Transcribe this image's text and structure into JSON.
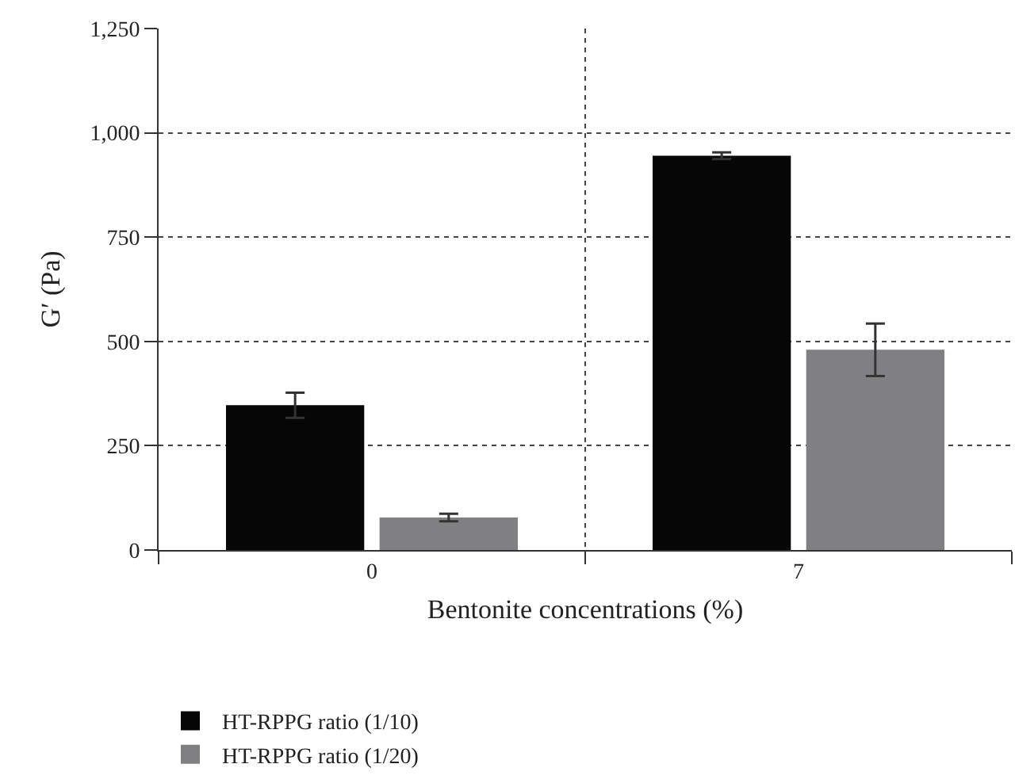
{
  "chart_data": {
    "type": "bar",
    "xlabel": "Bentonite concentrations (%)",
    "ylabel": "G′ (Pa)",
    "categories": [
      "0",
      "7"
    ],
    "series": [
      {
        "name": "HT-RPPG ratio (1/10)",
        "color": "#060606",
        "values": [
          347,
          945
        ],
        "errors": [
          30,
          8
        ]
      },
      {
        "name": "HT-RPPG ratio (1/20)",
        "color": "#808083",
        "values": [
          78,
          480
        ],
        "errors": [
          9,
          63
        ]
      }
    ],
    "ylim": [
      0,
      1250
    ],
    "yticks": [
      0,
      {
        "value": 250,
        "label": "250"
      },
      {
        "value": 500,
        "label": "500"
      },
      {
        "value": 750,
        "label": "750"
      },
      {
        "value": 1000,
        "label": "1,000"
      },
      {
        "value": 1250,
        "label": "1,250"
      }
    ],
    "grid": true,
    "legend": "bottom"
  }
}
